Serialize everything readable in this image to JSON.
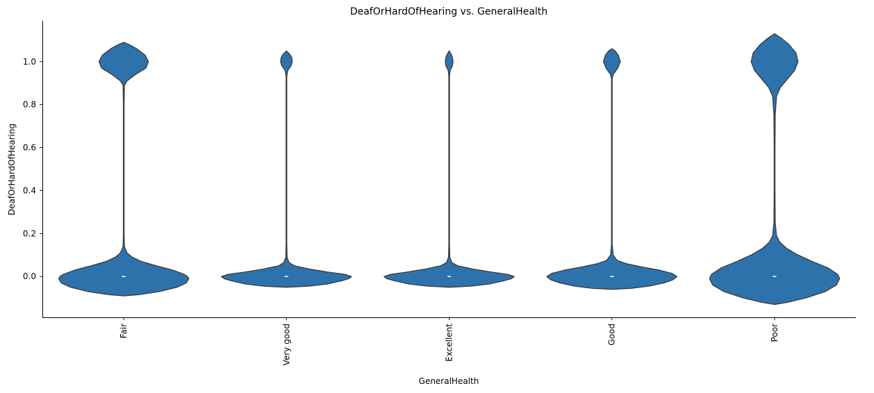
{
  "chart_data": {
    "type": "violin",
    "title": "DeafOrHardOfHearing vs. GeneralHealth",
    "xlabel": "GeneralHealth",
    "ylabel": "DeafOrHardOfHearing",
    "categories": [
      "Fair",
      "Very good",
      "Excellent",
      "Good",
      "Poor"
    ],
    "y_ticks": [
      "0.0",
      "0.2",
      "0.4",
      "0.6",
      "0.8",
      "1.0"
    ],
    "y_tick_values": [
      0.0,
      0.2,
      0.4,
      0.6,
      0.8,
      1.0
    ],
    "ylim": [
      -0.19,
      1.19
    ],
    "grid": false,
    "color": "#2e72ac",
    "edge_color": "#3a3a3a",
    "violins": [
      {
        "category": "Fair",
        "median": 0.0,
        "profile": [
          [
            -0.09,
            0.0
          ],
          [
            -0.085,
            0.22
          ],
          [
            -0.07,
            0.55
          ],
          [
            -0.05,
            0.82
          ],
          [
            -0.03,
            0.96
          ],
          [
            -0.01,
            1.0
          ],
          [
            0.0,
            0.98
          ],
          [
            0.01,
            0.93
          ],
          [
            0.03,
            0.75
          ],
          [
            0.05,
            0.5
          ],
          [
            0.07,
            0.27
          ],
          [
            0.09,
            0.13
          ],
          [
            0.11,
            0.05
          ],
          [
            0.14,
            0.01
          ],
          [
            0.2,
            0.005
          ],
          [
            0.5,
            0.005
          ],
          [
            0.8,
            0.005
          ],
          [
            0.89,
            0.01
          ],
          [
            0.91,
            0.05
          ],
          [
            0.94,
            0.18
          ],
          [
            0.97,
            0.34
          ],
          [
            1.0,
            0.38
          ],
          [
            1.03,
            0.33
          ],
          [
            1.06,
            0.2
          ],
          [
            1.08,
            0.08
          ],
          [
            1.09,
            0.0
          ]
        ]
      },
      {
        "category": "Very good",
        "median": 0.0,
        "profile": [
          [
            -0.05,
            0.0
          ],
          [
            -0.045,
            0.35
          ],
          [
            -0.035,
            0.63
          ],
          [
            -0.02,
            0.85
          ],
          [
            -0.01,
            0.96
          ],
          [
            0.0,
            1.0
          ],
          [
            0.01,
            0.9
          ],
          [
            0.02,
            0.65
          ],
          [
            0.035,
            0.35
          ],
          [
            0.05,
            0.12
          ],
          [
            0.065,
            0.04
          ],
          [
            0.09,
            0.01
          ],
          [
            0.15,
            0.005
          ],
          [
            0.5,
            0.005
          ],
          [
            0.93,
            0.005
          ],
          [
            0.96,
            0.02
          ],
          [
            0.98,
            0.07
          ],
          [
            1.0,
            0.09
          ],
          [
            1.02,
            0.08
          ],
          [
            1.035,
            0.05
          ],
          [
            1.05,
            0.0
          ]
        ]
      },
      {
        "category": "Excellent",
        "median": 0.0,
        "profile": [
          [
            -0.05,
            0.0
          ],
          [
            -0.045,
            0.33
          ],
          [
            -0.035,
            0.62
          ],
          [
            -0.02,
            0.84
          ],
          [
            -0.01,
            0.96
          ],
          [
            0.0,
            1.0
          ],
          [
            0.01,
            0.9
          ],
          [
            0.02,
            0.66
          ],
          [
            0.035,
            0.36
          ],
          [
            0.05,
            0.13
          ],
          [
            0.065,
            0.04
          ],
          [
            0.09,
            0.01
          ],
          [
            0.15,
            0.005
          ],
          [
            0.5,
            0.005
          ],
          [
            0.93,
            0.005
          ],
          [
            0.96,
            0.015
          ],
          [
            0.98,
            0.05
          ],
          [
            1.0,
            0.06
          ],
          [
            1.02,
            0.05
          ],
          [
            1.035,
            0.03
          ],
          [
            1.05,
            0.0
          ]
        ]
      },
      {
        "category": "Good",
        "median": 0.0,
        "profile": [
          [
            -0.06,
            0.0
          ],
          [
            -0.055,
            0.3
          ],
          [
            -0.045,
            0.57
          ],
          [
            -0.03,
            0.8
          ],
          [
            -0.015,
            0.94
          ],
          [
            0.0,
            1.0
          ],
          [
            0.015,
            0.92
          ],
          [
            0.03,
            0.72
          ],
          [
            0.045,
            0.45
          ],
          [
            0.06,
            0.22
          ],
          [
            0.075,
            0.08
          ],
          [
            0.1,
            0.02
          ],
          [
            0.15,
            0.005
          ],
          [
            0.5,
            0.005
          ],
          [
            0.92,
            0.005
          ],
          [
            0.94,
            0.02
          ],
          [
            0.97,
            0.09
          ],
          [
            1.0,
            0.13
          ],
          [
            1.03,
            0.1
          ],
          [
            1.05,
            0.05
          ],
          [
            1.06,
            0.0
          ]
        ]
      },
      {
        "category": "Poor",
        "median": 0.0,
        "profile": [
          [
            -0.13,
            0.0
          ],
          [
            -0.12,
            0.2
          ],
          [
            -0.1,
            0.48
          ],
          [
            -0.07,
            0.78
          ],
          [
            -0.04,
            0.95
          ],
          [
            -0.01,
            1.0
          ],
          [
            0.01,
            0.97
          ],
          [
            0.04,
            0.82
          ],
          [
            0.07,
            0.58
          ],
          [
            0.1,
            0.36
          ],
          [
            0.13,
            0.19
          ],
          [
            0.16,
            0.08
          ],
          [
            0.19,
            0.03
          ],
          [
            0.25,
            0.01
          ],
          [
            0.4,
            0.006
          ],
          [
            0.6,
            0.006
          ],
          [
            0.75,
            0.01
          ],
          [
            0.84,
            0.03
          ],
          [
            0.88,
            0.09
          ],
          [
            0.92,
            0.2
          ],
          [
            0.96,
            0.31
          ],
          [
            1.0,
            0.36
          ],
          [
            1.04,
            0.33
          ],
          [
            1.08,
            0.22
          ],
          [
            1.11,
            0.1
          ],
          [
            1.13,
            0.0
          ]
        ]
      }
    ]
  }
}
